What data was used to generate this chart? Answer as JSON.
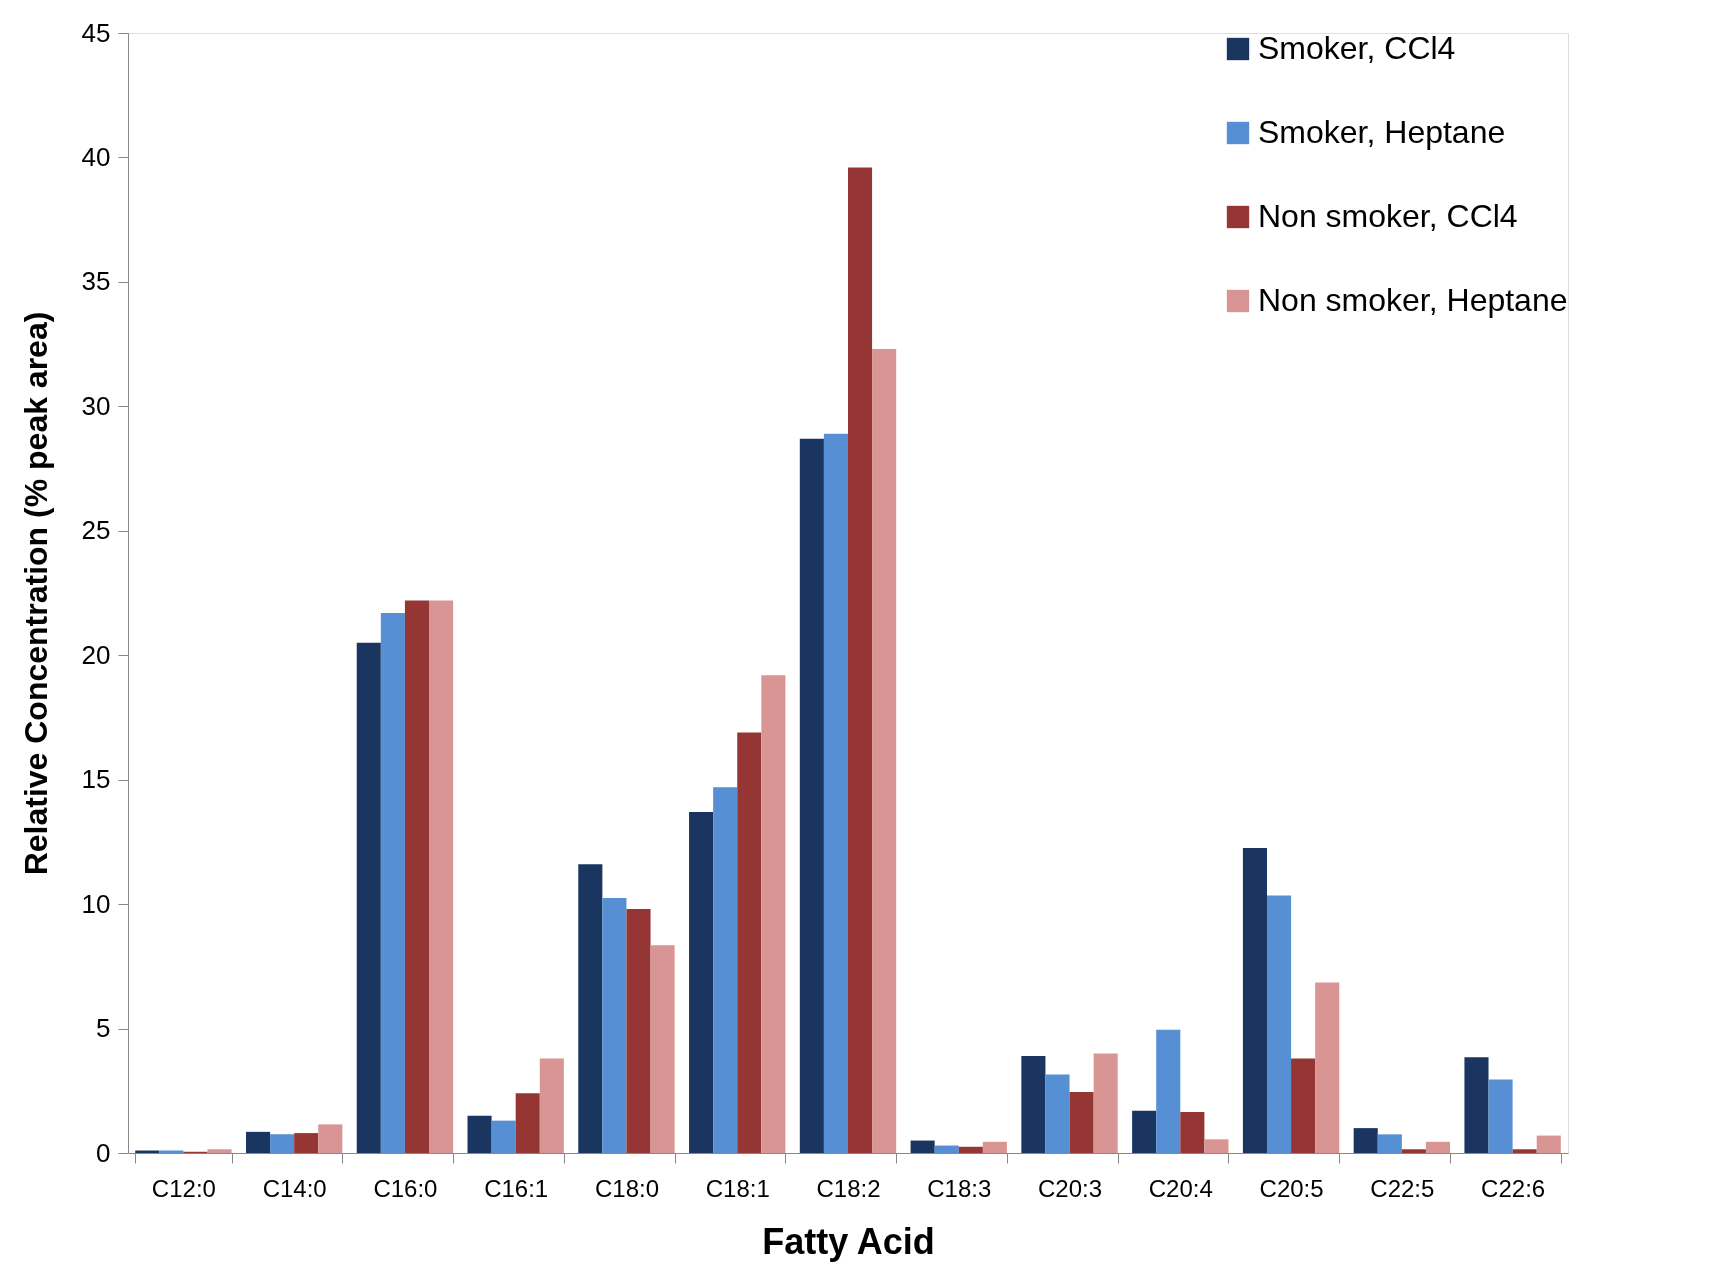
{
  "chart_data": {
    "type": "bar",
    "xlabel": "Fatty Acid",
    "ylabel": "Relative Concentration (% peak area)",
    "categories": [
      "C12:0",
      "C14:0",
      "C16:0",
      "C16:1",
      "C18:0",
      "C18:1",
      "C18:2",
      "C18:3",
      "C20:3",
      "C20:4",
      "C20:5",
      "C22:5",
      "C22:6"
    ],
    "series": [
      {
        "name": "Smoker, CCl4",
        "color": "#1a3660",
        "values": [
          0.1,
          0.85,
          20.5,
          1.5,
          11.6,
          13.7,
          28.7,
          0.5,
          3.9,
          1.7,
          12.25,
          1.0,
          3.85
        ]
      },
      {
        "name": "Smoker, Heptane",
        "color": "#578fd4",
        "values": [
          0.1,
          0.75,
          21.7,
          1.3,
          10.25,
          14.7,
          28.9,
          0.3,
          3.15,
          4.95,
          10.35,
          0.75,
          2.95
        ]
      },
      {
        "name": "Non smoker, CCl4",
        "color": "#963634",
        "values": [
          0.05,
          0.8,
          22.2,
          2.4,
          9.8,
          16.9,
          39.6,
          0.25,
          2.45,
          1.65,
          3.8,
          0.15,
          0.15
        ]
      },
      {
        "name": "Non smoker, Heptane",
        "color": "#d99594",
        "values": [
          0.15,
          1.15,
          22.2,
          3.8,
          8.35,
          19.2,
          32.3,
          0.45,
          4.0,
          0.55,
          6.85,
          0.45,
          0.7
        ]
      }
    ],
    "ylim": [
      0,
      45
    ],
    "yticks": [
      0,
      5,
      10,
      15,
      20,
      25,
      30,
      35,
      40,
      45
    ],
    "grid": false,
    "legend": "top right"
  }
}
